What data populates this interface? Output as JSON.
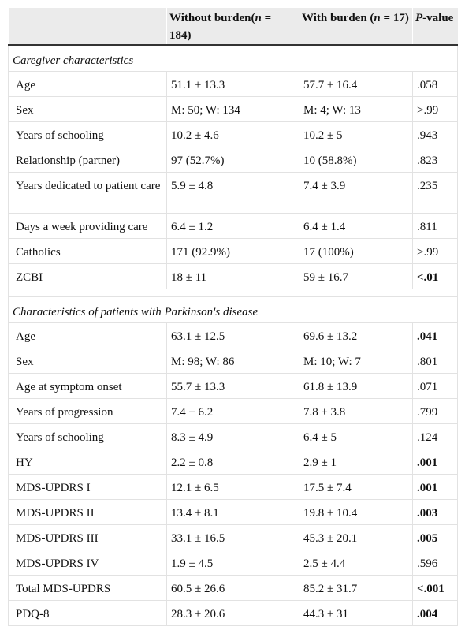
{
  "header": {
    "col_without": "Without burden(",
    "col_without_n_symbol": "n",
    "col_without_n_value": " = 184)",
    "col_with": "With burden (",
    "col_with_n_symbol": "n",
    "col_with_n_value": " = 17)",
    "col_p_italic": "P",
    "col_p_rest": "-value"
  },
  "caregiver": {
    "title": "Caregiver characteristics",
    "rows": [
      {
        "label": "Age",
        "without": "51.1 ± 13.3",
        "with": "57.7 ± 16.4",
        "p": ".058"
      },
      {
        "label": "Sex",
        "without": "M: 50; W: 134",
        "with": "M: 4; W: 13",
        "p": ">.99"
      },
      {
        "label": "Years of schooling",
        "without": "10.2 ± 4.6",
        "with": "10.2 ± 5",
        "p": ".943"
      },
      {
        "label": "Relationship (partner)",
        "without": "97 (52.7%)",
        "with": "10 (58.8%)",
        "p": ".823"
      },
      {
        "label": "Years dedicated to patient care",
        "without": "5.9 ± 4.8",
        "with": "7.4 ± 3.9",
        "p": ".235"
      },
      {
        "label": "Days a week providing care",
        "without": "6.4 ± 1.2",
        "with": "6.4 ± 1.4",
        "p": ".811"
      },
      {
        "label": "Catholics",
        "without": "171 (92.9%)",
        "with": "17 (100%)",
        "p": ">.99"
      },
      {
        "label": "ZCBI",
        "without": "18 ± 11",
        "with": "59 ± 16.7",
        "p": "<.01"
      }
    ]
  },
  "patients": {
    "title": "Characteristics of patients with Parkinson's disease",
    "rows": [
      {
        "label": "Age",
        "without": "63.1 ± 12.5",
        "with": "69.6 ± 13.2",
        "p": ".041"
      },
      {
        "label": "Sex",
        "without": "M: 98; W: 86",
        "with": "M: 10; W: 7",
        "p": ".801"
      },
      {
        "label": "Age at symptom onset",
        "without": "55.7 ± 13.3",
        "with": "61.8 ± 13.9",
        "p": ".071"
      },
      {
        "label": "Years of progression",
        "without": "7.4 ± 6.2",
        "with": "7.8 ± 3.8",
        "p": ".799"
      },
      {
        "label": "Years of schooling",
        "without": "8.3 ± 4.9",
        "with": "6.4 ± 5",
        "p": ".124"
      },
      {
        "label": "HY",
        "without": "2.2 ± 0.8",
        "with": "2.9 ± 1",
        "p": ".001"
      },
      {
        "label": "MDS-UPDRS I",
        "without": "12.1 ± 6.5",
        "with": "17.5 ± 7.4",
        "p": ".001"
      },
      {
        "label": "MDS-UPDRS II",
        "without": "13.4 ± 8.1",
        "with": "19.8 ± 10.4",
        "p": ".003"
      },
      {
        "label": "MDS-UPDRS III",
        "without": "33.1 ± 16.5",
        "with": "45.3 ± 20.1",
        "p": ".005"
      },
      {
        "label": "MDS-UPDRS IV",
        "without": "1.9 ± 4.5",
        "with": "2.5 ± 4.4",
        "p": ".596"
      },
      {
        "label": "Total MDS-UPDRS",
        "without": "60.5 ± 26.6",
        "with": "85.2 ± 31.7",
        "p": "<.001"
      },
      {
        "label": "PDQ-8",
        "without": "28.3 ± 20.6",
        "with": "44.3 ± 31",
        "p": ".004"
      }
    ]
  }
}
